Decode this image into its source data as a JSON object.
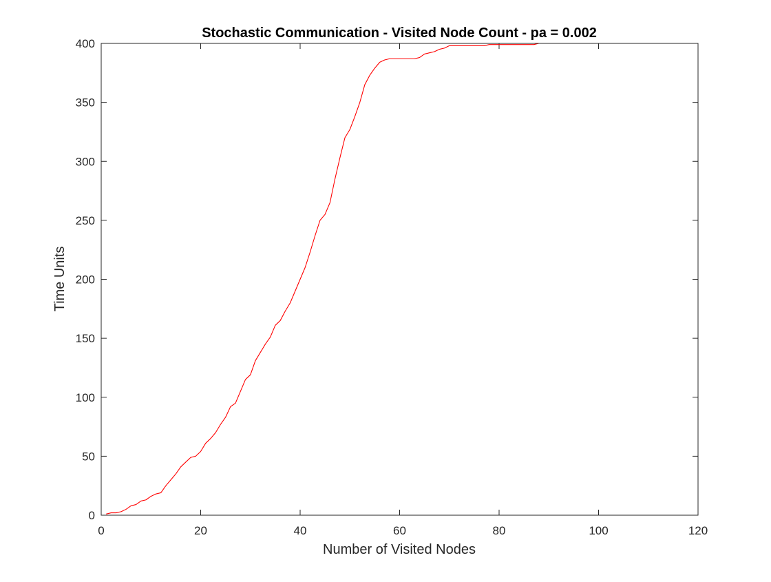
{
  "chart_data": {
    "type": "line",
    "title": "Stochastic Communication - Visited Node Count - pa = 0.002",
    "xlabel": "Number of Visited Nodes",
    "ylabel": "Time Units",
    "xlim": [
      0,
      120
    ],
    "ylim": [
      0,
      400
    ],
    "xticks": [
      "0",
      "20",
      "40",
      "60",
      "80",
      "100",
      "120"
    ],
    "yticks": [
      "0",
      "50",
      "100",
      "150",
      "200",
      "250",
      "300",
      "350",
      "400"
    ],
    "xtick_values": [
      0,
      20,
      40,
      60,
      80,
      100,
      120
    ],
    "ytick_values": [
      0,
      50,
      100,
      150,
      200,
      250,
      300,
      350,
      400
    ],
    "grid": false,
    "legend": "none",
    "series": [
      {
        "color": "#ff0000",
        "x": [
          1,
          2,
          3,
          4,
          5,
          6,
          7,
          8,
          9,
          10,
          11,
          12,
          13,
          14,
          15,
          16,
          17,
          18,
          19,
          20,
          21,
          22,
          23,
          24,
          25,
          26,
          27,
          28,
          29,
          30,
          31,
          32,
          33,
          34,
          35,
          36,
          37,
          38,
          39,
          40,
          41,
          42,
          43,
          44,
          45,
          46,
          47,
          48,
          49,
          50,
          51,
          52,
          53,
          54,
          55,
          56,
          57,
          58,
          59,
          60,
          61,
          62,
          63,
          64,
          65,
          66,
          67,
          68,
          69,
          70,
          71,
          72,
          73,
          74,
          75,
          76,
          77,
          78,
          79,
          80,
          81,
          82,
          83,
          84,
          85,
          86,
          87,
          88,
          89,
          90,
          91,
          92,
          93,
          94,
          95,
          96,
          97,
          98,
          99,
          100,
          101
        ],
        "y": [
          1,
          2,
          2,
          3,
          5,
          8,
          9,
          12,
          13,
          16,
          18,
          19,
          25,
          30,
          35,
          41,
          45,
          49,
          50,
          54,
          61,
          65,
          70,
          77,
          83,
          92,
          95,
          105,
          115,
          119,
          131,
          138,
          145,
          151,
          161,
          165,
          173,
          180,
          190,
          200,
          210,
          223,
          237,
          250,
          255,
          265,
          285,
          303,
          320,
          327,
          338,
          350,
          365,
          373,
          379,
          384,
          386,
          387,
          387,
          387,
          387,
          387,
          387,
          388,
          391,
          392,
          393,
          395,
          396,
          398,
          398,
          398,
          398,
          398,
          398,
          398,
          398,
          399,
          399,
          399,
          399,
          399,
          399,
          399,
          399,
          399,
          399,
          400,
          400,
          400,
          400,
          400,
          400,
          400,
          400,
          400,
          400,
          400,
          400,
          400,
          400
        ]
      }
    ]
  }
}
